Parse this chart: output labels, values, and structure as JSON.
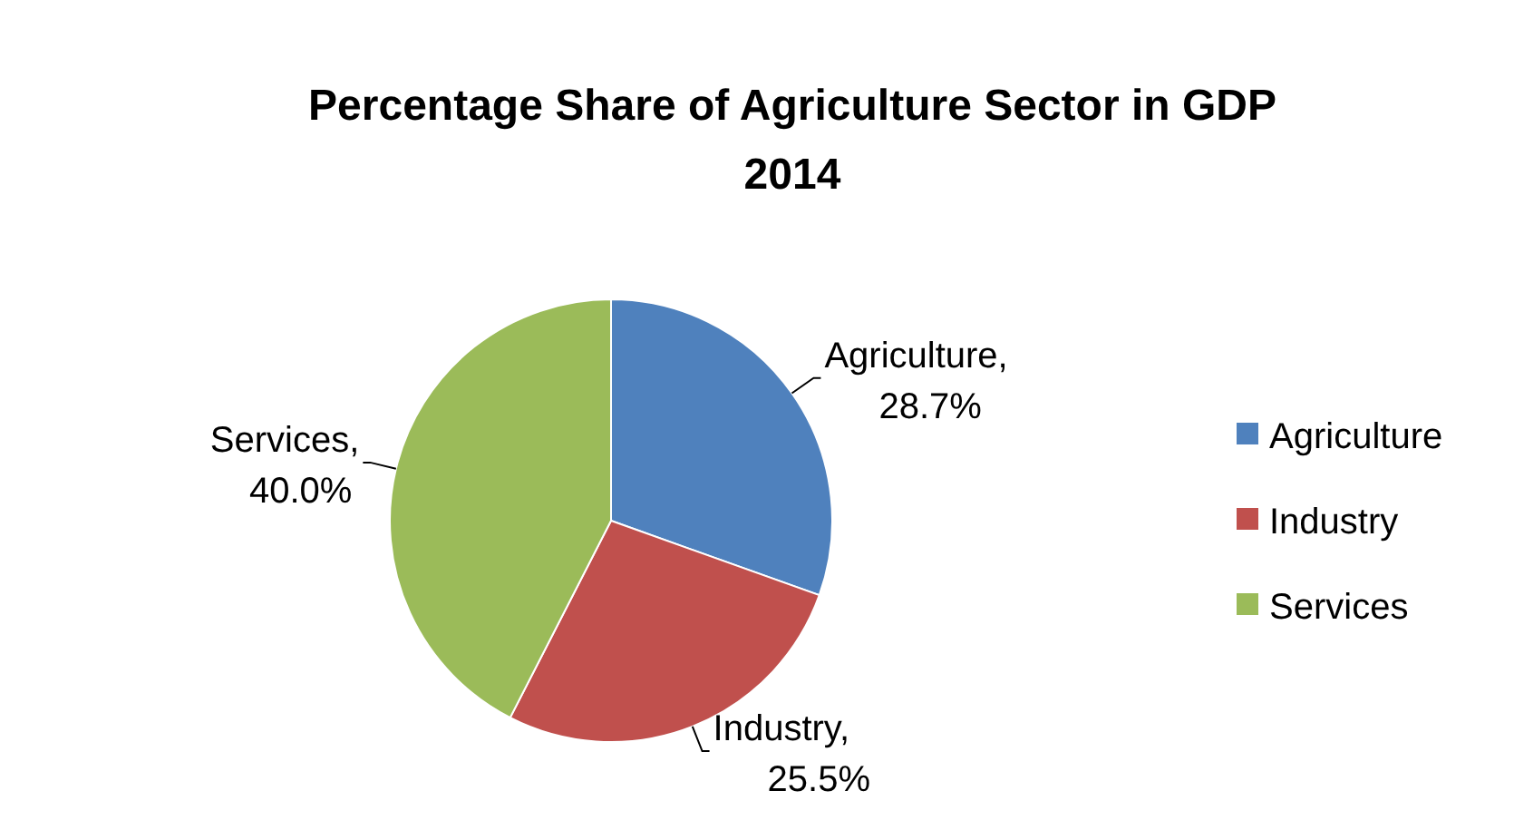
{
  "chart_data": {
    "type": "pie",
    "title": "Percentage Share of Agriculture Sector in GDP 2014",
    "categories": [
      "Agriculture",
      "Industry",
      "Services"
    ],
    "values": [
      28.7,
      25.5,
      40.0
    ],
    "colors": [
      "#4f81bd",
      "#c0504d",
      "#9bbb59"
    ],
    "value_labels": [
      "Agriculture, 28.7%",
      "Industry, 25.5%",
      "Services, 40.0%"
    ],
    "legend": "right"
  }
}
